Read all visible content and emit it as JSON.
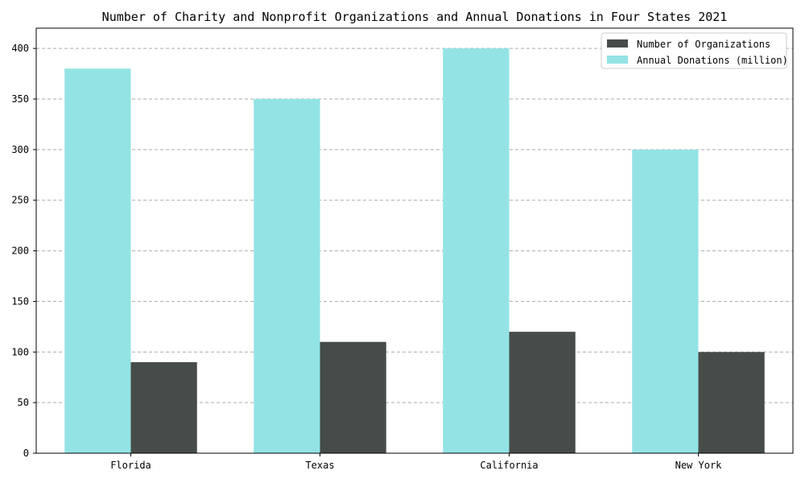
{
  "chart_data": {
    "type": "bar",
    "title": "Number of Charity and Nonprofit Organizations and Annual Donations in Four States 2021",
    "xlabel": "",
    "ylabel": "",
    "categories": [
      "Florida",
      "Texas",
      "California",
      "New York"
    ],
    "series": [
      {
        "name": "Annual Donations (million)",
        "values": [
          380,
          350,
          400,
          300
        ],
        "color": "#93e3e5"
      },
      {
        "name": "Number of Organizations",
        "values": [
          90,
          110,
          120,
          100
        ],
        "color": "#464c49"
      }
    ],
    "legend_order": [
      1,
      0
    ],
    "ylim": [
      0,
      420
    ],
    "yticks": [
      0,
      50,
      100,
      150,
      200,
      250,
      300,
      350,
      400
    ],
    "grid": true,
    "grid_axis": "y",
    "legend_position": "top-right"
  }
}
